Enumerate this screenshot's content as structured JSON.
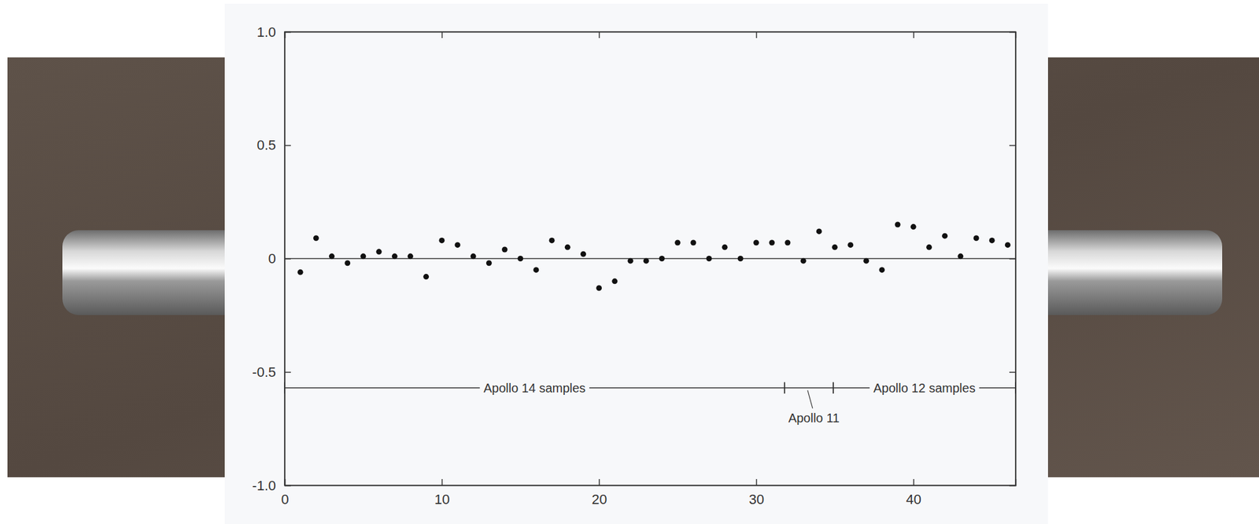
{
  "chart_data": {
    "type": "scatter",
    "x": [
      1,
      2,
      3,
      4,
      5,
      6,
      7,
      8,
      9,
      10,
      11,
      12,
      13,
      14,
      15,
      16,
      17,
      18,
      19,
      20,
      21,
      22,
      23,
      24,
      25,
      26,
      27,
      28,
      29,
      30,
      31,
      32,
      33,
      34,
      35,
      36,
      37,
      38,
      39,
      40,
      41,
      42,
      43,
      44,
      45,
      46
    ],
    "values": [
      -0.06,
      0.09,
      0.01,
      -0.02,
      0.01,
      0.03,
      0.01,
      0.01,
      -0.08,
      0.08,
      0.06,
      0.01,
      -0.02,
      0.04,
      0.0,
      -0.05,
      0.08,
      0.05,
      0.02,
      -0.13,
      -0.1,
      -0.01,
      -0.01,
      0.0,
      0.07,
      0.07,
      0.0,
      0.05,
      0.0,
      0.07,
      0.07,
      0.07,
      -0.01,
      0.12,
      0.05,
      0.06,
      -0.01,
      -0.05,
      0.15,
      0.14,
      0.05,
      0.1,
      0.01,
      0.09,
      0.08,
      0.06
    ],
    "color": "#111111",
    "marker": "circle",
    "xlim": [
      0,
      46.5
    ],
    "xticks": [
      0,
      10,
      20,
      30,
      40
    ],
    "ylim": [
      -1,
      1
    ],
    "yticks": [
      {
        "value": -1,
        "label": "-1.0"
      },
      -0.5,
      0,
      0.5,
      {
        "value": 1,
        "label": "1.0"
      }
    ],
    "hlines": [
      0
    ],
    "annotations": [
      {
        "text": "Apollo 14 samples",
        "x": [
          0,
          31.8
        ],
        "y": -0.57
      },
      {
        "text": "Apollo 11",
        "x": [
          31.8,
          34.9
        ],
        "y": -0.57
      },
      {
        "text": "Apollo 12 samples",
        "x": [
          34.9,
          46.5
        ],
        "y": -0.57
      }
    ]
  }
}
